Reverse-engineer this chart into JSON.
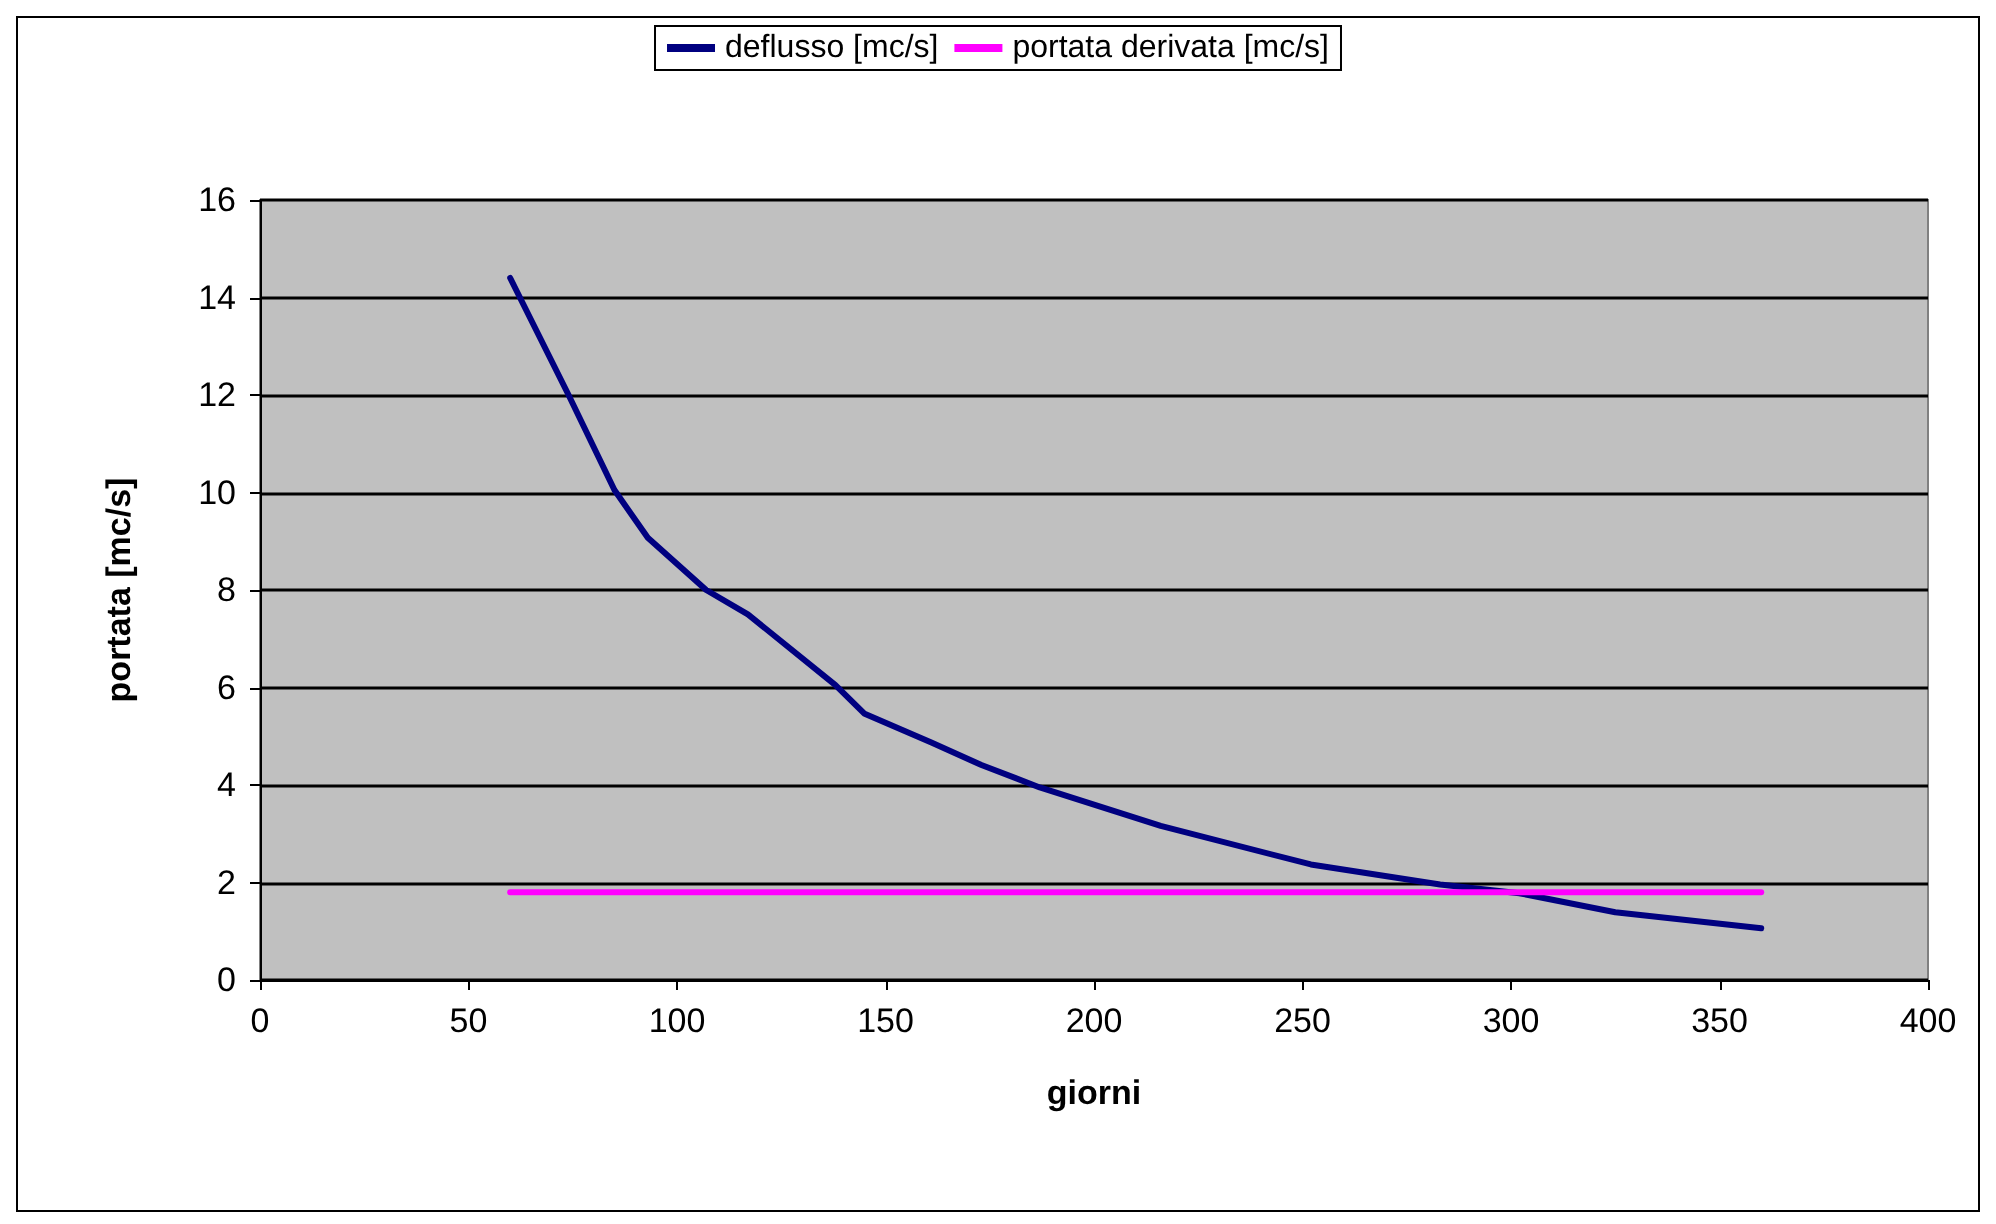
{
  "chart_data": {
    "type": "line",
    "xlabel": "giorni",
    "ylabel": "portata [mc/s]",
    "xlim": [
      0,
      400
    ],
    "xticks": [
      0,
      50,
      100,
      150,
      200,
      250,
      300,
      350,
      400
    ],
    "ylim": [
      0,
      16
    ],
    "yticks": [
      0,
      2,
      4,
      6,
      8,
      10,
      12,
      14,
      16
    ],
    "grid": "y",
    "legend": "top",
    "marker": "none",
    "line_style": "solid",
    "series": [
      {
        "name": "deflusso [mc/s]",
        "color": "#000080",
        "x": [
          60,
          74,
          85,
          93,
          107,
          117,
          138,
          145,
          161,
          173,
          187,
          216,
          252,
          283,
          302,
          325,
          360
        ],
        "values": [
          14.4,
          12.0,
          10.05,
          9.07,
          8.0,
          7.5,
          6.05,
          5.46,
          4.87,
          4.41,
          3.95,
          3.16,
          2.37,
          1.96,
          1.78,
          1.39,
          1.06
        ]
      },
      {
        "name": "portata derivata [mc/s]",
        "color": "#ff00ff",
        "x": [
          60,
          360
        ],
        "values": [
          1.8,
          1.8
        ]
      }
    ]
  }
}
